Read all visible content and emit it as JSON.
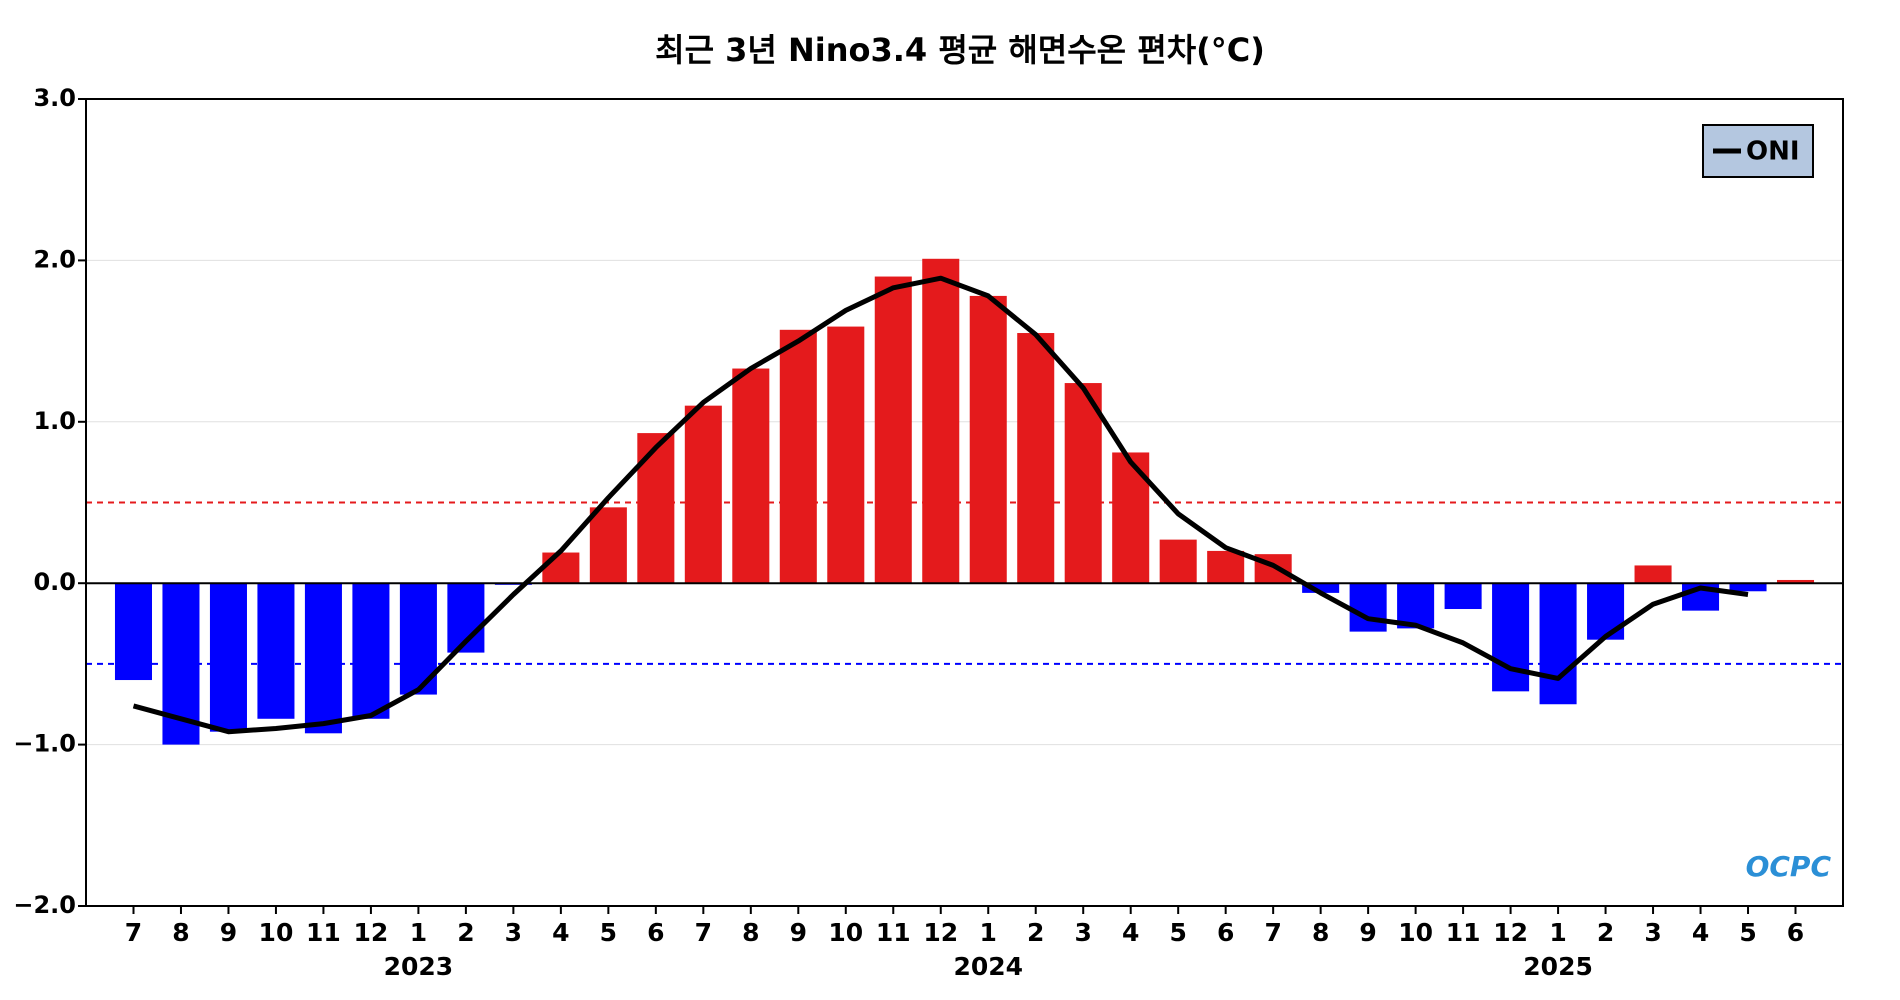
{
  "chart_data": {
    "type": "bar_line",
    "title": "최근 3년 Nino3.4 평균 해면수온 편차(°C)",
    "categories": [
      "7",
      "8",
      "9",
      "10",
      "11",
      "12",
      "1",
      "2",
      "3",
      "4",
      "5",
      "6",
      "7",
      "8",
      "9",
      "10",
      "11",
      "12",
      "1",
      "2",
      "3",
      "4",
      "5",
      "6",
      "7",
      "8",
      "9",
      "10",
      "11",
      "12",
      "1",
      "2",
      "3",
      "4",
      "5",
      "6"
    ],
    "year_labels": [
      null,
      null,
      null,
      null,
      null,
      null,
      "2023",
      null,
      null,
      null,
      null,
      null,
      null,
      null,
      null,
      null,
      null,
      null,
      "2024",
      null,
      null,
      null,
      null,
      null,
      null,
      null,
      null,
      null,
      null,
      null,
      "2025",
      null,
      null,
      null,
      null,
      null
    ],
    "bars": {
      "values": [
        -0.6,
        -1.0,
        -0.92,
        -0.84,
        -0.93,
        -0.84,
        -0.69,
        -0.43,
        -0.01,
        0.19,
        0.47,
        0.93,
        1.1,
        1.33,
        1.57,
        1.59,
        1.9,
        2.01,
        1.78,
        1.55,
        1.24,
        0.81,
        0.27,
        0.2,
        0.18,
        -0.06,
        -0.3,
        -0.28,
        -0.16,
        -0.67,
        -0.75,
        -0.35,
        0.11,
        -0.17,
        -0.05,
        0.02
      ],
      "positive_color": "#e41a1c",
      "negative_color": "#0000ff"
    },
    "series": [
      {
        "name": "ONI",
        "color": "#000000",
        "values": [
          -0.76,
          -0.84,
          -0.92,
          -0.9,
          -0.87,
          -0.82,
          -0.66,
          -0.36,
          -0.07,
          0.2,
          0.53,
          0.84,
          1.12,
          1.33,
          1.5,
          1.69,
          1.83,
          1.89,
          1.78,
          1.54,
          1.21,
          0.75,
          0.43,
          0.22,
          0.11,
          -0.06,
          -0.22,
          -0.26,
          -0.37,
          -0.53,
          -0.59,
          -0.33,
          -0.13,
          -0.03,
          -0.07,
          null
        ]
      }
    ],
    "thresholds": [
      {
        "value": 0.5,
        "color": "#e41a1c"
      },
      {
        "value": -0.5,
        "color": "#0000ff"
      }
    ],
    "ylim": [
      -2,
      3
    ],
    "yticks": [
      {
        "value": -2,
        "label": "−2.0"
      },
      {
        "value": -1,
        "label": "−1.0"
      },
      {
        "value": 0,
        "label": "0.0"
      },
      {
        "value": 1,
        "label": "1.0"
      },
      {
        "value": 2,
        "label": "2.0"
      },
      {
        "value": 3,
        "label": "3.0"
      }
    ],
    "grid": true,
    "legend": "upper right",
    "watermark": "OCPC"
  }
}
